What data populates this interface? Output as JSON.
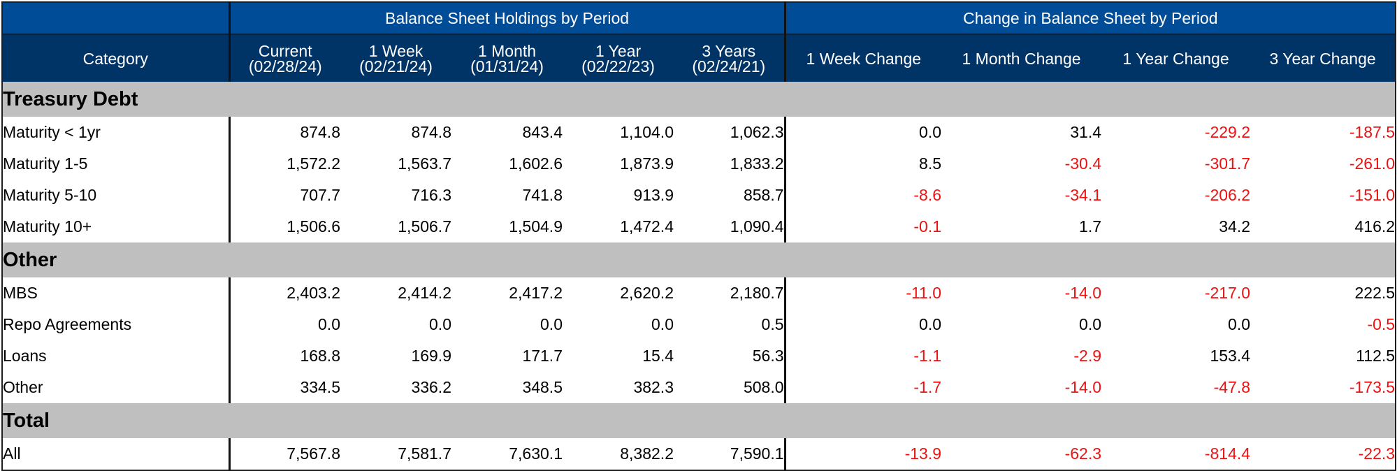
{
  "group_headers": {
    "holdings": "Balance Sheet Holdings by Period",
    "change": "Change in Balance Sheet by Period"
  },
  "columns": [
    {
      "line1": "Category",
      "line2": ""
    },
    {
      "line1": "Current",
      "line2": "(02/28/24)"
    },
    {
      "line1": "1 Week",
      "line2": "(02/21/24)"
    },
    {
      "line1": "1 Month",
      "line2": "(01/31/24)"
    },
    {
      "line1": "1 Year",
      "line2": "(02/22/23)"
    },
    {
      "line1": "3 Years",
      "line2": "(02/24/21)"
    },
    {
      "line1": "1 Week Change",
      "line2": ""
    },
    {
      "line1": "1 Month Change",
      "line2": ""
    },
    {
      "line1": "1 Year Change",
      "line2": ""
    },
    {
      "line1": "3 Year Change",
      "line2": ""
    }
  ],
  "sections": [
    {
      "title": "Treasury Debt",
      "rows": [
        {
          "label": "Maturity < 1yr",
          "holdings": [
            "874.8",
            "874.8",
            "843.4",
            "1,104.0",
            "1,062.3"
          ],
          "changes": [
            "0.0",
            "31.4",
            "-229.2",
            "-187.5"
          ]
        },
        {
          "label": "Maturity 1-5",
          "holdings": [
            "1,572.2",
            "1,563.7",
            "1,602.6",
            "1,873.9",
            "1,833.2"
          ],
          "changes": [
            "8.5",
            "-30.4",
            "-301.7",
            "-261.0"
          ]
        },
        {
          "label": "Maturity 5-10",
          "holdings": [
            "707.7",
            "716.3",
            "741.8",
            "913.9",
            "858.7"
          ],
          "changes": [
            "-8.6",
            "-34.1",
            "-206.2",
            "-151.0"
          ]
        },
        {
          "label": "Maturity 10+",
          "holdings": [
            "1,506.6",
            "1,506.7",
            "1,504.9",
            "1,472.4",
            "1,090.4"
          ],
          "changes": [
            "-0.1",
            "1.7",
            "34.2",
            "416.2"
          ]
        }
      ]
    },
    {
      "title": "Other",
      "rows": [
        {
          "label": "MBS",
          "holdings": [
            "2,403.2",
            "2,414.2",
            "2,417.2",
            "2,620.2",
            "2,180.7"
          ],
          "changes": [
            "-11.0",
            "-14.0",
            "-217.0",
            "222.5"
          ]
        },
        {
          "label": "Repo Agreements",
          "holdings": [
            "0.0",
            "0.0",
            "0.0",
            "0.0",
            "0.5"
          ],
          "changes": [
            "0.0",
            "0.0",
            "0.0",
            "-0.5"
          ]
        },
        {
          "label": "Loans",
          "holdings": [
            "168.8",
            "169.9",
            "171.7",
            "15.4",
            "56.3"
          ],
          "changes": [
            "-1.1",
            "-2.9",
            "153.4",
            "112.5"
          ]
        },
        {
          "label": "Other",
          "holdings": [
            "334.5",
            "336.2",
            "348.5",
            "382.3",
            "508.0"
          ],
          "changes": [
            "-1.7",
            "-14.0",
            "-47.8",
            "-173.5"
          ]
        }
      ]
    },
    {
      "title": "Total",
      "rows": [
        {
          "label": "All",
          "holdings": [
            "7,567.8",
            "7,581.7",
            "7,630.1",
            "8,382.2",
            "7,590.1"
          ],
          "changes": [
            "-13.9",
            "-62.3",
            "-814.4",
            "-22.3"
          ]
        }
      ]
    }
  ],
  "colors": {
    "group_header_bg": "#004c97",
    "column_header_bg": "#003366",
    "section_bg": "#bfbfbf",
    "negative": "#ee1111"
  }
}
